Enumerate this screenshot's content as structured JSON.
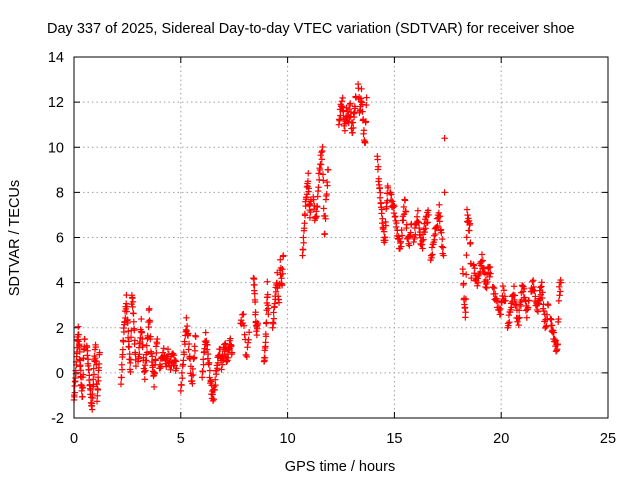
{
  "chart_data": {
    "type": "scatter",
    "title": "Day 337 of 2025, Sidereal Day-to-day VTEC variation (SDTVAR) for receiver shoe",
    "xlabel": "GPS time / hours",
    "ylabel": "SDTVAR / TECUs",
    "xlim": [
      0,
      25
    ],
    "ylim": [
      -2,
      14
    ],
    "xticks": [
      0,
      5,
      10,
      15,
      20,
      25
    ],
    "xtick_labels": [
      "0",
      "5",
      "10",
      "15",
      "20",
      "25"
    ],
    "yticks": [
      -2,
      0,
      2,
      4,
      6,
      8,
      10,
      12,
      14
    ],
    "ytick_labels": [
      "-2",
      "0",
      "2",
      "4",
      "6",
      "8",
      "10",
      "12",
      "14"
    ],
    "grid": true,
    "marker": "+",
    "color": "#ff0000",
    "series": [
      {
        "name": "SDTVAR",
        "segments": [
          {
            "x0": 0.0,
            "x1": 0.5,
            "y": [
              -1.2,
              -0.5,
              0.3,
              1.2,
              1.8,
              1.0,
              0.2,
              -0.6,
              -1.0,
              0.8,
              1.5
            ]
          },
          {
            "x0": 0.6,
            "x1": 1.2,
            "y": [
              1.2,
              0.5,
              -0.3,
              -1.0,
              -1.6,
              -0.5,
              0.6,
              1.1,
              -1.2,
              -0.2,
              0.9
            ]
          },
          {
            "x0": 2.2,
            "x1": 2.9,
            "y": [
              -0.5,
              0.6,
              1.8,
              2.5,
              3.2,
              2.0,
              1.0,
              0.0,
              3.5,
              2.8,
              1.5,
              0.3
            ]
          },
          {
            "x0": 3.0,
            "x1": 3.9,
            "y": [
              0.5,
              1.2,
              2.2,
              1.0,
              -0.2,
              0.6,
              1.5,
              2.8,
              1.0,
              0.4,
              -0.4,
              0.8,
              1.5
            ]
          },
          {
            "x0": 4.0,
            "x1": 4.8,
            "y": [
              0.2,
              0.6,
              0.9,
              0.4,
              0.8,
              0.3,
              0.7,
              0.5,
              0.2
            ]
          },
          {
            "x0": 5.0,
            "x1": 5.7,
            "y": [
              -0.8,
              0.2,
              1.2,
              2.2,
              1.5,
              0.4,
              -0.5,
              0.6,
              1.6
            ]
          },
          {
            "x0": 6.0,
            "x1": 7.4,
            "y": [
              -0.2,
              0.8,
              1.6,
              1.0,
              0.2,
              -0.6,
              -1.1,
              -0.8,
              0.0,
              0.6,
              1.0,
              0.4,
              0.8,
              1.2,
              0.6,
              1.0,
              1.4,
              0.9
            ]
          },
          {
            "x0": 7.8,
            "x1": 8.2,
            "y": [
              2.2,
              2.5,
              0.6,
              1.8
            ]
          },
          {
            "x0": 8.4,
            "x1": 8.6,
            "y": [
              4.2,
              3.8,
              2.5,
              1.8,
              2.2
            ]
          },
          {
            "x0": 8.9,
            "x1": 9.1,
            "y": [
              0.5,
              1.0,
              2.0,
              3.8,
              2.6
            ]
          },
          {
            "x0": 9.3,
            "x1": 9.8,
            "y": [
              2.0,
              2.8,
              3.6,
              4.2,
              3.0,
              4.8,
              3.8,
              5.2
            ]
          },
          {
            "x0": 10.7,
            "x1": 11.1,
            "y": [
              5.2,
              6.2,
              7.4,
              8.0,
              8.6,
              7.0,
              7.6
            ]
          },
          {
            "x0": 11.2,
            "x1": 11.9,
            "y": [
              7.8,
              6.8,
              7.2,
              8.6,
              9.4,
              9.8,
              6.0,
              7.8,
              9.0
            ]
          },
          {
            "x0": 12.4,
            "x1": 13.2,
            "y": [
              11.0,
              11.8,
              12.0,
              10.8,
              11.5,
              11.2,
              11.8,
              10.6,
              11.4,
              12.2
            ]
          },
          {
            "x0": 13.3,
            "x1": 13.7,
            "y": [
              12.8,
              11.5,
              12.4,
              11.0,
              10.0,
              12.2
            ]
          },
          {
            "x0": 14.2,
            "x1": 14.7,
            "y": [
              9.6,
              8.5,
              7.8,
              7.0,
              6.2,
              5.8,
              7.4,
              8.2
            ]
          },
          {
            "x0": 14.8,
            "x1": 15.8,
            "y": [
              8.0,
              7.5,
              7.2,
              6.4,
              5.8,
              5.6,
              6.8,
              7.6,
              6.0,
              5.8,
              6.6
            ]
          },
          {
            "x0": 15.9,
            "x1": 16.6,
            "y": [
              5.8,
              6.5,
              7.0,
              6.0,
              5.6,
              6.4,
              6.8,
              7.0
            ]
          },
          {
            "x0": 16.7,
            "x1": 17.3,
            "y": [
              5.0,
              5.6,
              6.2,
              6.6,
              7.2,
              6.0,
              5.2
            ]
          },
          {
            "x0": 17.3,
            "x1": 17.4,
            "y": [
              10.4
            ]
          },
          {
            "x0": 17.3,
            "x1": 17.4,
            "y": [
              8.0
            ]
          },
          {
            "x0": 18.2,
            "x1": 18.6,
            "y": [
              4.6,
              3.2,
              2.5,
              7.0,
              6.6,
              6.4,
              4.2
            ]
          },
          {
            "x0": 18.7,
            "x1": 19.5,
            "y": [
              4.8,
              4.2,
              4.0,
              4.6,
              5.0,
              4.4,
              3.8,
              4.6,
              4.4
            ]
          },
          {
            "x0": 19.6,
            "x1": 20.2,
            "y": [
              3.8,
              3.4,
              3.0,
              2.6,
              3.6,
              3.2
            ]
          },
          {
            "x0": 20.3,
            "x1": 21.3,
            "y": [
              2.0,
              2.6,
              3.2,
              3.6,
              2.8,
              2.2,
              3.0,
              3.8,
              3.4,
              2.6,
              3.2
            ]
          },
          {
            "x0": 21.4,
            "x1": 22.2,
            "y": [
              3.6,
              4.0,
              3.2,
              2.8,
              3.4,
              3.8,
              2.6,
              2.0,
              3.0
            ]
          },
          {
            "x0": 22.3,
            "x1": 22.8,
            "y": [
              2.4,
              2.0,
              1.6,
              1.2,
              1.0,
              3.6,
              4.0
            ]
          }
        ]
      }
    ]
  }
}
